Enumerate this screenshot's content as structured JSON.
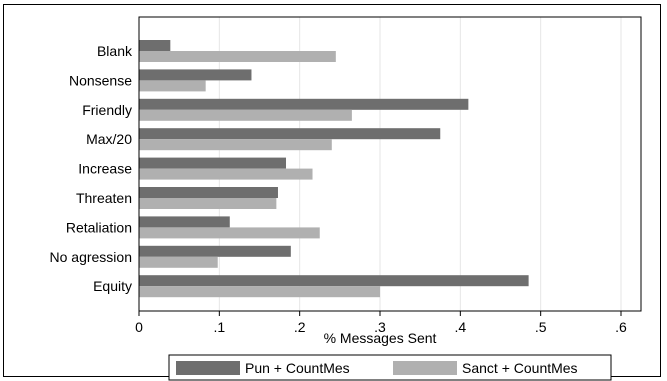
{
  "chart_data": {
    "type": "bar",
    "orientation": "horizontal",
    "categories": [
      "Blank",
      "Nonsense",
      "Friendly",
      "Max/20",
      "Increase",
      "Threaten",
      "Retaliation",
      "No agression",
      "Equity"
    ],
    "series": [
      {
        "name": "Pun + CountMes",
        "color": "#6e6e6e",
        "values": [
          0.039,
          0.14,
          0.41,
          0.375,
          0.183,
          0.173,
          0.113,
          0.189,
          0.485
        ]
      },
      {
        "name": "Sanct + CountMes",
        "color": "#b0b0b0",
        "values": [
          0.245,
          0.083,
          0.265,
          0.24,
          0.216,
          0.171,
          0.225,
          0.098,
          0.3
        ]
      }
    ],
    "xlabel": "% Messages Sent",
    "xlim": [
      0,
      0.6
    ],
    "xticks": [
      0,
      0.1,
      0.2,
      0.3,
      0.4,
      0.5,
      0.6
    ],
    "xtick_labels": [
      "0",
      ".1",
      ".2",
      ".3",
      ".4",
      ".5",
      ".6"
    ],
    "grid": "vertical",
    "legend_position": "bottom"
  }
}
